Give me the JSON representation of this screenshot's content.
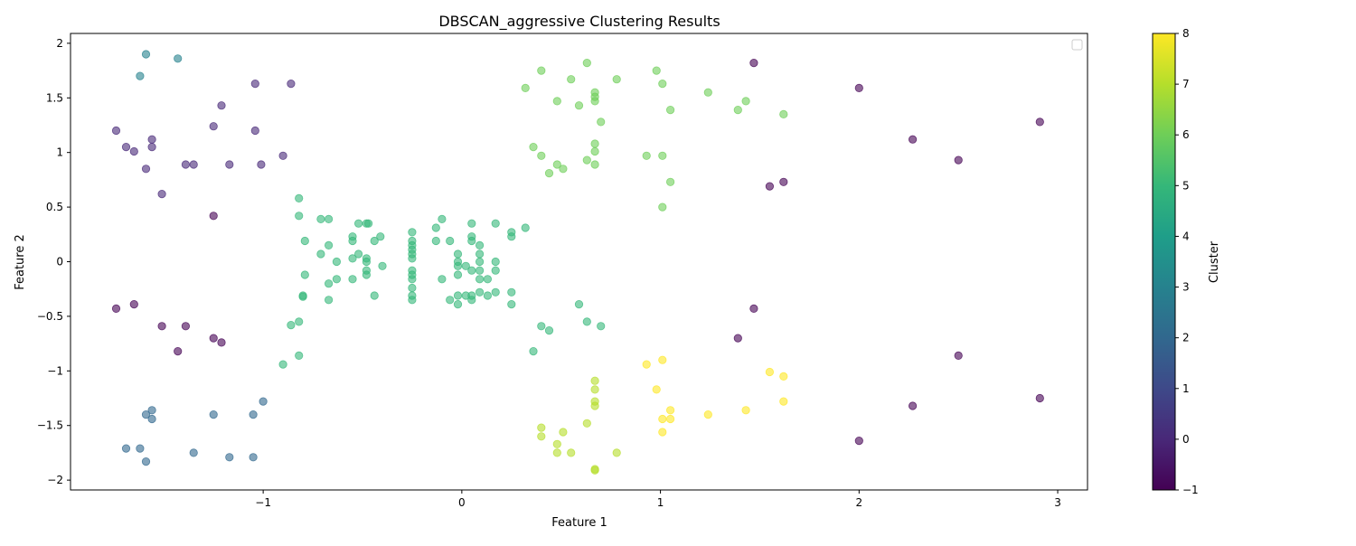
{
  "chart_data": {
    "type": "scatter",
    "title": "DBSCAN_aggressive Clustering Results",
    "xlabel": "Feature 1",
    "ylabel": "Feature 2",
    "xlim": [
      -1.97,
      3.15
    ],
    "ylim": [
      -2.09,
      2.09
    ],
    "xticks": [
      -1,
      0,
      1,
      2,
      3
    ],
    "yticks": [
      -2.0,
      -1.5,
      -1.0,
      -0.5,
      0.0,
      0.5,
      1.0,
      1.5,
      2.0
    ],
    "grid": false,
    "legend": "top-right (empty)",
    "colormap": "viridis",
    "point_alpha": 0.6,
    "colorbar": {
      "label": "Cluster",
      "range": [
        -1,
        8
      ],
      "ticks": [
        -1,
        0,
        1,
        2,
        3,
        4,
        5,
        6,
        7,
        8
      ],
      "stops": [
        "#440154",
        "#482878",
        "#3e4989",
        "#31688e",
        "#26828e",
        "#1f9e89",
        "#35b779",
        "#6ece58",
        "#b5de2b",
        "#fde725"
      ]
    },
    "series": [
      {
        "cluster": -1,
        "points": [
          [
            1.47,
            1.82
          ],
          [
            2.0,
            1.59
          ],
          [
            2.27,
            1.12
          ],
          [
            2.91,
            1.28
          ],
          [
            2.5,
            0.93
          ],
          [
            1.55,
            0.69
          ],
          [
            1.62,
            0.73
          ],
          [
            -1.25,
            0.42
          ],
          [
            -1.74,
            -0.43
          ],
          [
            -1.65,
            -0.39
          ],
          [
            -1.51,
            -0.59
          ],
          [
            -1.39,
            -0.59
          ],
          [
            -1.43,
            -0.82
          ],
          [
            -1.25,
            -0.7
          ],
          [
            -1.21,
            -0.74
          ],
          [
            1.47,
            -0.43
          ],
          [
            1.39,
            -0.7
          ],
          [
            2.5,
            -0.86
          ],
          [
            2.27,
            -1.32
          ],
          [
            2.91,
            -1.25
          ],
          [
            2.0,
            -1.64
          ]
        ]
      },
      {
        "cluster": 0,
        "points": [
          [
            -1.04,
            1.63
          ],
          [
            -0.86,
            1.63
          ],
          [
            -1.21,
            1.43
          ],
          [
            -1.74,
            1.2
          ],
          [
            -1.25,
            1.24
          ],
          [
            -1.04,
            1.2
          ],
          [
            -1.56,
            1.12
          ],
          [
            -1.69,
            1.05
          ],
          [
            -1.56,
            1.05
          ],
          [
            -1.65,
            1.01
          ],
          [
            -0.9,
            0.97
          ],
          [
            -1.39,
            0.89
          ],
          [
            -1.35,
            0.89
          ],
          [
            -1.17,
            0.89
          ],
          [
            -1.01,
            0.89
          ],
          [
            -1.59,
            0.85
          ],
          [
            -1.51,
            0.62
          ]
        ]
      },
      {
        "cluster": 2,
        "points": [
          [
            -1.0,
            -1.28
          ],
          [
            -1.25,
            -1.4
          ],
          [
            -1.05,
            -1.4
          ],
          [
            -1.56,
            -1.36
          ],
          [
            -1.59,
            -1.4
          ],
          [
            -1.56,
            -1.44
          ],
          [
            -1.69,
            -1.71
          ],
          [
            -1.62,
            -1.71
          ],
          [
            -1.35,
            -1.75
          ],
          [
            -1.17,
            -1.79
          ],
          [
            -1.05,
            -1.79
          ],
          [
            -1.59,
            -1.83
          ]
        ]
      },
      {
        "cluster": 3,
        "points": [
          [
            -1.59,
            1.9
          ],
          [
            -1.43,
            1.86
          ],
          [
            -1.62,
            1.7
          ]
        ]
      },
      {
        "cluster": 5,
        "points": [
          [
            -0.82,
            0.58
          ],
          [
            -0.82,
            0.42
          ],
          [
            -0.71,
            0.39
          ],
          [
            -0.67,
            0.39
          ],
          [
            -0.52,
            0.35
          ],
          [
            -0.48,
            0.35
          ],
          [
            -0.47,
            0.35
          ],
          [
            -0.55,
            0.23
          ],
          [
            -0.55,
            0.19
          ],
          [
            -0.44,
            0.19
          ],
          [
            -0.41,
            0.23
          ],
          [
            -0.79,
            0.19
          ],
          [
            -0.67,
            0.15
          ],
          [
            -0.71,
            0.07
          ],
          [
            -0.52,
            0.07
          ],
          [
            -0.55,
            0.03
          ],
          [
            -0.48,
            0.03
          ],
          [
            -0.48,
            0.0
          ],
          [
            -0.63,
            0.0
          ],
          [
            -0.4,
            -0.04
          ],
          [
            -0.79,
            -0.12
          ],
          [
            -0.48,
            -0.08
          ],
          [
            -0.48,
            -0.12
          ],
          [
            -0.63,
            -0.16
          ],
          [
            -0.55,
            -0.16
          ],
          [
            -0.67,
            -0.2
          ],
          [
            -0.8,
            -0.32
          ],
          [
            -0.8,
            -0.31
          ],
          [
            -0.67,
            -0.35
          ],
          [
            -0.44,
            -0.31
          ],
          [
            -0.86,
            -0.58
          ],
          [
            -0.82,
            -0.55
          ],
          [
            -0.82,
            -0.86
          ],
          [
            -0.9,
            -0.94
          ],
          [
            -0.25,
            0.27
          ],
          [
            -0.25,
            0.19
          ],
          [
            -0.25,
            0.15
          ],
          [
            -0.25,
            0.11
          ],
          [
            -0.25,
            0.07
          ],
          [
            -0.25,
            0.03
          ],
          [
            -0.13,
            0.31
          ],
          [
            -0.1,
            0.39
          ],
          [
            -0.13,
            0.19
          ],
          [
            -0.06,
            0.19
          ],
          [
            -0.02,
            0.07
          ],
          [
            -0.02,
            0.0
          ],
          [
            -0.02,
            -0.04
          ],
          [
            0.02,
            -0.04
          ],
          [
            -0.02,
            -0.12
          ],
          [
            -0.25,
            -0.08
          ],
          [
            -0.25,
            -0.12
          ],
          [
            -0.25,
            -0.16
          ],
          [
            -0.25,
            -0.24
          ],
          [
            -0.25,
            -0.31
          ],
          [
            -0.25,
            -0.35
          ],
          [
            -0.1,
            -0.16
          ],
          [
            -0.06,
            -0.35
          ],
          [
            -0.02,
            -0.31
          ],
          [
            0.02,
            -0.31
          ],
          [
            -0.02,
            -0.39
          ],
          [
            0.05,
            0.35
          ],
          [
            0.05,
            0.23
          ],
          [
            0.05,
            0.19
          ],
          [
            0.09,
            0.15
          ],
          [
            0.09,
            0.07
          ],
          [
            0.09,
            0.0
          ],
          [
            0.17,
            0.0
          ],
          [
            0.05,
            -0.08
          ],
          [
            0.09,
            -0.08
          ],
          [
            0.17,
            -0.08
          ],
          [
            0.09,
            -0.16
          ],
          [
            0.13,
            -0.16
          ],
          [
            0.09,
            -0.28
          ],
          [
            0.17,
            -0.28
          ],
          [
            0.05,
            -0.31
          ],
          [
            0.13,
            -0.31
          ],
          [
            0.05,
            -0.35
          ],
          [
            0.17,
            0.35
          ],
          [
            0.25,
            0.27
          ],
          [
            0.25,
            0.23
          ],
          [
            0.32,
            0.31
          ],
          [
            0.25,
            -0.28
          ],
          [
            0.25,
            -0.39
          ],
          [
            0.59,
            -0.39
          ],
          [
            0.4,
            -0.59
          ],
          [
            0.44,
            -0.63
          ],
          [
            0.63,
            -0.55
          ],
          [
            0.7,
            -0.59
          ],
          [
            0.36,
            -0.82
          ]
        ]
      },
      {
        "cluster": 6,
        "points": [
          [
            0.63,
            1.82
          ],
          [
            0.4,
            1.75
          ],
          [
            0.98,
            1.75
          ],
          [
            0.55,
            1.67
          ],
          [
            0.78,
            1.67
          ],
          [
            0.32,
            1.59
          ],
          [
            1.01,
            1.63
          ],
          [
            0.67,
            1.55
          ],
          [
            1.24,
            1.55
          ],
          [
            0.67,
            1.51
          ],
          [
            0.48,
            1.47
          ],
          [
            0.67,
            1.47
          ],
          [
            1.43,
            1.47
          ],
          [
            0.59,
            1.43
          ],
          [
            1.05,
            1.39
          ],
          [
            1.39,
            1.39
          ],
          [
            1.62,
            1.35
          ],
          [
            0.7,
            1.28
          ],
          [
            0.67,
            1.08
          ],
          [
            0.36,
            1.05
          ],
          [
            0.67,
            1.01
          ],
          [
            0.4,
            0.97
          ],
          [
            0.93,
            0.97
          ],
          [
            1.01,
            0.97
          ],
          [
            0.63,
            0.93
          ],
          [
            0.48,
            0.89
          ],
          [
            0.67,
            0.89
          ],
          [
            0.51,
            0.85
          ],
          [
            0.44,
            0.81
          ],
          [
            1.05,
            0.73
          ],
          [
            1.01,
            0.5
          ]
        ]
      },
      {
        "cluster": 7,
        "points": [
          [
            0.67,
            -1.09
          ],
          [
            0.67,
            -1.17
          ],
          [
            0.67,
            -1.28
          ],
          [
            0.67,
            -1.32
          ],
          [
            0.63,
            -1.48
          ],
          [
            0.4,
            -1.52
          ],
          [
            0.51,
            -1.56
          ],
          [
            0.4,
            -1.6
          ],
          [
            0.48,
            -1.67
          ],
          [
            0.48,
            -1.75
          ],
          [
            0.55,
            -1.75
          ],
          [
            0.78,
            -1.75
          ],
          [
            0.67,
            -1.9
          ],
          [
            0.67,
            -1.91
          ]
        ]
      },
      {
        "cluster": 8,
        "points": [
          [
            0.93,
            -0.94
          ],
          [
            1.01,
            -0.9
          ],
          [
            1.55,
            -1.01
          ],
          [
            1.62,
            -1.05
          ],
          [
            0.98,
            -1.17
          ],
          [
            1.62,
            -1.28
          ],
          [
            1.05,
            -1.36
          ],
          [
            1.43,
            -1.36
          ],
          [
            1.24,
            -1.4
          ],
          [
            1.01,
            -1.44
          ],
          [
            1.05,
            -1.44
          ],
          [
            1.01,
            -1.56
          ]
        ]
      }
    ]
  }
}
